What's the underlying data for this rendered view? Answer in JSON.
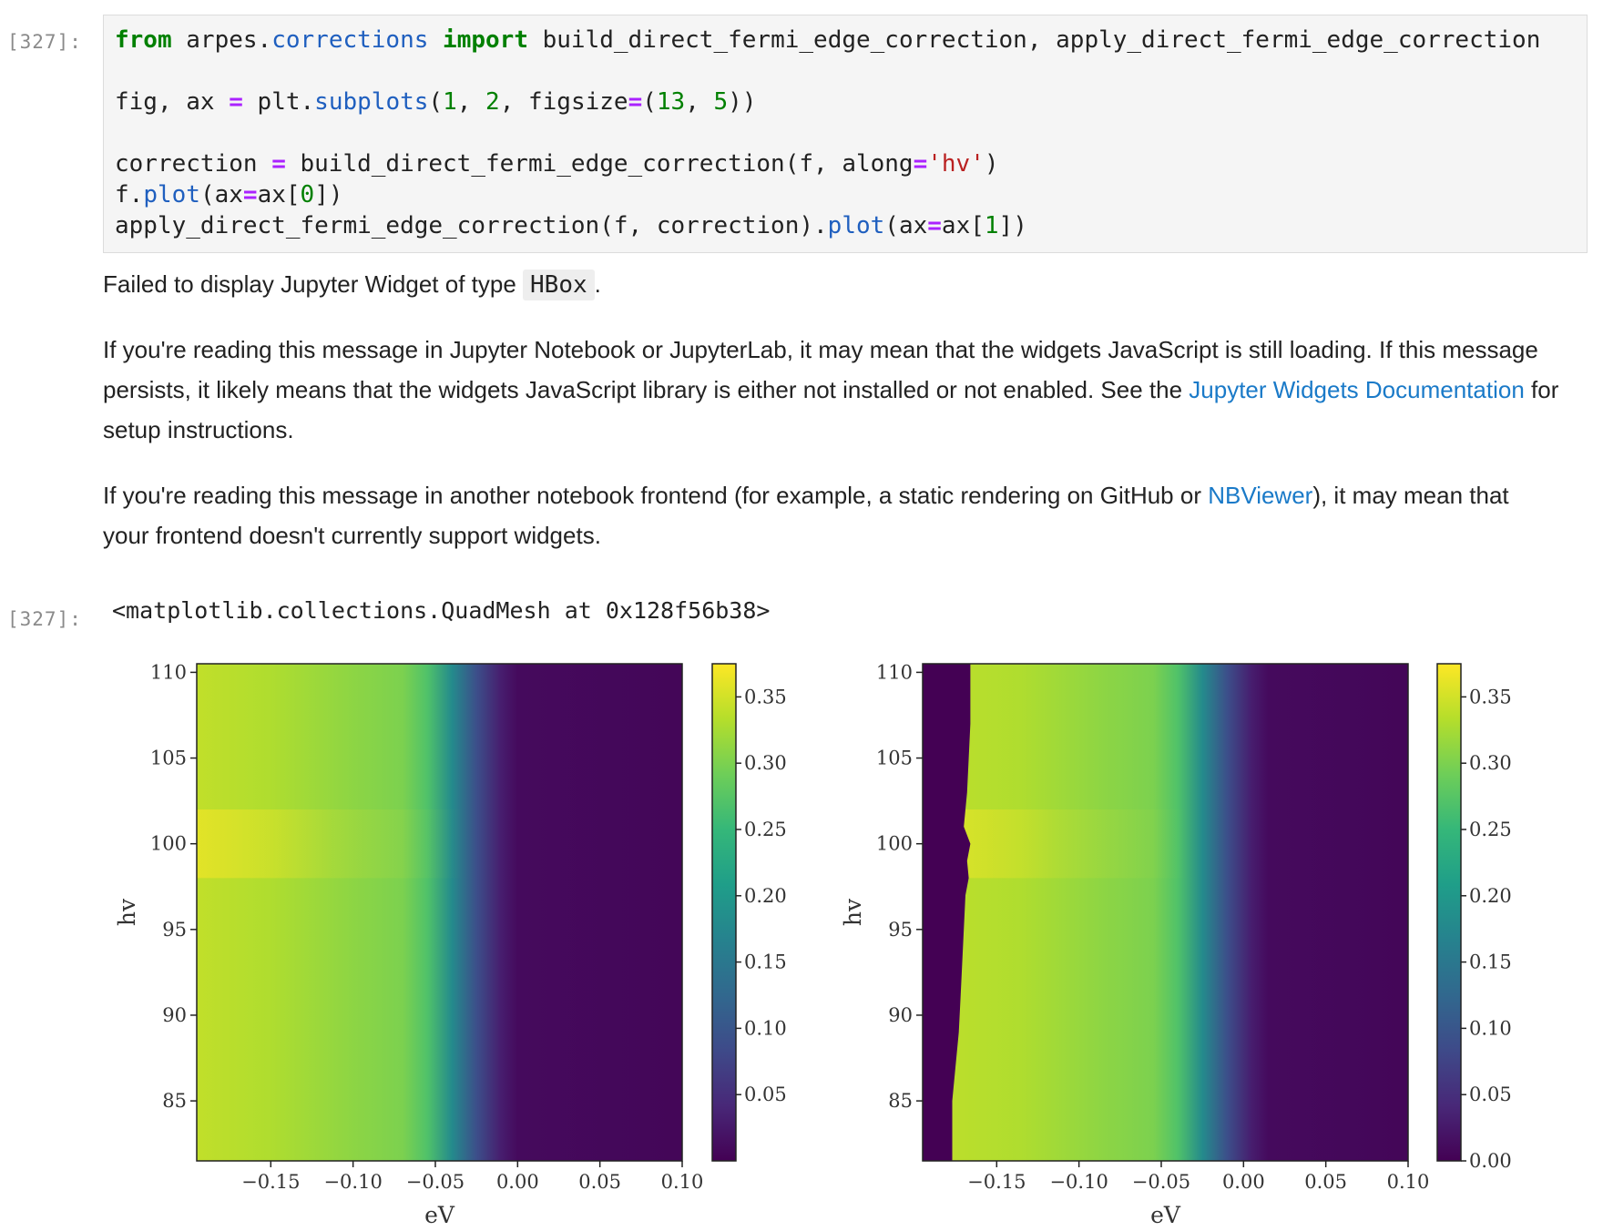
{
  "cell": {
    "in_prompt": "[327]:",
    "out_prompt": "[327]:",
    "code_lines": [
      [
        [
          "kw",
          "from"
        ],
        [
          "t",
          " arpes."
        ],
        [
          "fn",
          "corrections"
        ],
        [
          "t",
          " "
        ],
        [
          "kw",
          "import"
        ],
        [
          "t",
          " build_direct_fermi_edge_correction, apply_direct_fermi_edge_correction"
        ]
      ],
      [],
      [
        [
          "t",
          "fig, ax "
        ],
        [
          "op",
          "="
        ],
        [
          "t",
          " plt."
        ],
        [
          "fn",
          "subplots"
        ],
        [
          "t",
          "("
        ],
        [
          "num",
          "1"
        ],
        [
          "t",
          ", "
        ],
        [
          "num",
          "2"
        ],
        [
          "t",
          ", figsize"
        ],
        [
          "op",
          "="
        ],
        [
          "t",
          "("
        ],
        [
          "num",
          "13"
        ],
        [
          "t",
          ", "
        ],
        [
          "num",
          "5"
        ],
        [
          "t",
          "))"
        ]
      ],
      [],
      [
        [
          "t",
          "correction "
        ],
        [
          "op",
          "="
        ],
        [
          "t",
          " build_direct_fermi_edge_correction(f, along"
        ],
        [
          "op",
          "="
        ],
        [
          "str",
          "'hv'"
        ],
        [
          "t",
          ")"
        ]
      ],
      [
        [
          "t",
          "f."
        ],
        [
          "fn",
          "plot"
        ],
        [
          "t",
          "(ax"
        ],
        [
          "op",
          "="
        ],
        [
          "t",
          "ax["
        ],
        [
          "num",
          "0"
        ],
        [
          "t",
          "])"
        ]
      ],
      [
        [
          "t",
          "apply_direct_fermi_edge_correction(f, correction)."
        ],
        [
          "fn",
          "plot"
        ],
        [
          "t",
          "(ax"
        ],
        [
          "op",
          "="
        ],
        [
          "t",
          "ax["
        ],
        [
          "num",
          "1"
        ],
        [
          "t",
          "])"
        ]
      ]
    ]
  },
  "widget_message": {
    "failed_prefix": "Failed to display Jupyter Widget of type ",
    "widget_type": "HBox",
    "failed_suffix": ".",
    "para1_text": "If you're reading this message in Jupyter Notebook or JupyterLab, it may mean that the widgets JavaScript is still loading. If this message persists, it likely means that the widgets JavaScript library is either not installed or not enabled. See the ",
    "para1_link": "Jupyter Widgets Documentation",
    "para1_tail": " for setup instructions.",
    "para2_text": "If you're reading this message in another notebook frontend (for example, a static rendering on GitHub or ",
    "para2_link": "NBViewer",
    "para2_tail": "), it may mean that your frontend doesn't currently support widgets."
  },
  "output_repr": "<matplotlib.collections.QuadMesh at 0x128f56b38>",
  "colormap": [
    "#440154",
    "#482878",
    "#3e4a89",
    "#31688e",
    "#26828e",
    "#1f9e89",
    "#35b779",
    "#6ece58",
    "#b5de2b",
    "#fde725"
  ],
  "chart_data": [
    {
      "type": "heatmap",
      "xlabel": "eV",
      "ylabel": "hv",
      "xlim": [
        -0.195,
        0.1
      ],
      "ylim": [
        81.5,
        110.5
      ],
      "xticks": [
        -0.15,
        -0.1,
        -0.05,
        0.0,
        0.05,
        0.1
      ],
      "xtick_labels": [
        "−0.15",
        "−0.10",
        "−0.05",
        "0.00",
        "0.05",
        "0.10"
      ],
      "yticks": [
        85,
        90,
        95,
        100,
        105,
        110
      ],
      "ytick_labels": [
        "85",
        "90",
        "95",
        "100",
        "105",
        "110"
      ],
      "colorbar": {
        "range": [
          0.0,
          0.375
        ],
        "ticks": [
          0.05,
          0.1,
          0.15,
          0.2,
          0.25,
          0.3,
          0.35
        ],
        "tick_labels": [
          "0.05",
          "0.10",
          "0.15",
          "0.20",
          "0.25",
          "0.30",
          "0.35"
        ]
      },
      "profile_ev": [
        -0.195,
        -0.15,
        -0.1,
        -0.07,
        -0.055,
        -0.04,
        -0.025,
        -0.01,
        0.0,
        0.1
      ],
      "profile_intensity": [
        0.34,
        0.33,
        0.31,
        0.3,
        0.27,
        0.18,
        0.09,
        0.03,
        0.01,
        0.005
      ],
      "fermi_edge_ev": -0.04,
      "bright_band_hv": [
        98,
        102
      ]
    },
    {
      "type": "heatmap",
      "xlabel": "eV",
      "ylabel": "hv",
      "xlim": [
        -0.195,
        0.1
      ],
      "ylim": [
        81.5,
        110.5
      ],
      "xticks": [
        -0.15,
        -0.1,
        -0.05,
        0.0,
        0.05,
        0.1
      ],
      "xtick_labels": [
        "−0.15",
        "−0.10",
        "−0.05",
        "0.00",
        "0.05",
        "0.10"
      ],
      "yticks": [
        85,
        90,
        95,
        100,
        105,
        110
      ],
      "ytick_labels": [
        "85",
        "90",
        "95",
        "100",
        "105",
        "110"
      ],
      "colorbar": {
        "range": [
          0.0,
          0.375
        ],
        "ticks": [
          0.0,
          0.05,
          0.1,
          0.15,
          0.2,
          0.25,
          0.3,
          0.35
        ],
        "tick_labels": [
          "0.00",
          "0.05",
          "0.10",
          "0.15",
          "0.20",
          "0.25",
          "0.30",
          "0.35"
        ]
      },
      "profile_ev": [
        -0.195,
        -0.15,
        -0.1,
        -0.07,
        -0.055,
        -0.04,
        -0.025,
        -0.01,
        0.0,
        0.1
      ],
      "profile_intensity": [
        0.34,
        0.33,
        0.31,
        0.3,
        0.27,
        0.18,
        0.09,
        0.03,
        0.01,
        0.005
      ],
      "fermi_edge_ev": -0.025,
      "bright_band_hv": [
        98,
        102
      ],
      "masked_left_edge": {
        "hv": [
          81.5,
          85,
          87,
          89,
          91,
          93,
          95,
          97,
          98,
          99,
          100,
          101,
          103,
          105,
          107,
          110.5
        ],
        "ev": [
          -0.177,
          -0.177,
          -0.175,
          -0.173,
          -0.172,
          -0.171,
          -0.17,
          -0.169,
          -0.167,
          -0.168,
          -0.166,
          -0.17,
          -0.168,
          -0.167,
          -0.166,
          -0.166
        ]
      }
    }
  ]
}
